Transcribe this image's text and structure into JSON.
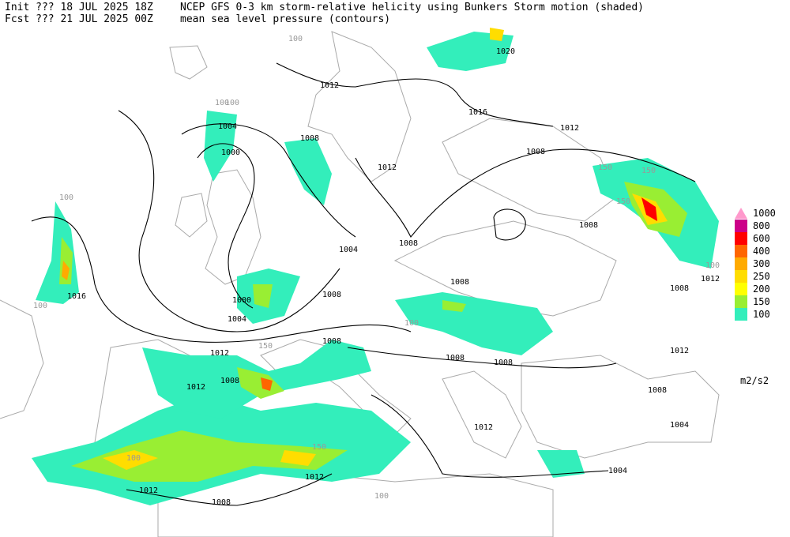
{
  "header": {
    "init": "Init  ??? 18 JUL 2025 18Z",
    "fcst": "Fcst ??? 21 JUL 2025 00Z",
    "title_shaded": "NCEP GFS 0-3 km storm-relative helicity using Bunkers Storm motion (shaded)",
    "title_contours": "mean sea level pressure (contours)"
  },
  "isobar_labels": [
    1020,
    1012,
    1016,
    1012,
    1004,
    1008,
    1000,
    1012,
    1008,
    1008,
    1004,
    1008,
    1016,
    1000,
    1004,
    1008,
    1008,
    1008,
    1012,
    1008,
    1012,
    1008,
    1008,
    1012,
    1008,
    1012,
    1008,
    1004,
    1004,
    1012,
    1012,
    1012,
    1008
  ],
  "shading_labels": [
    100,
    100,
    100,
    150,
    100,
    150,
    150,
    100,
    100,
    150,
    100,
    100,
    150,
    100
  ],
  "legend": {
    "unit": "m2/s2",
    "levels": [
      {
        "value": 1000,
        "color": "#ff99cc"
      },
      {
        "value": 800,
        "color": "#cc0088"
      },
      {
        "value": 600,
        "color": "#ff0000"
      },
      {
        "value": 400,
        "color": "#ff6600"
      },
      {
        "value": 300,
        "color": "#ffaa00"
      },
      {
        "value": 250,
        "color": "#ffdd00"
      },
      {
        "value": 200,
        "color": "#ffff00"
      },
      {
        "value": 150,
        "color": "#99ee33"
      },
      {
        "value": 100,
        "color": "#33eebb"
      }
    ]
  }
}
